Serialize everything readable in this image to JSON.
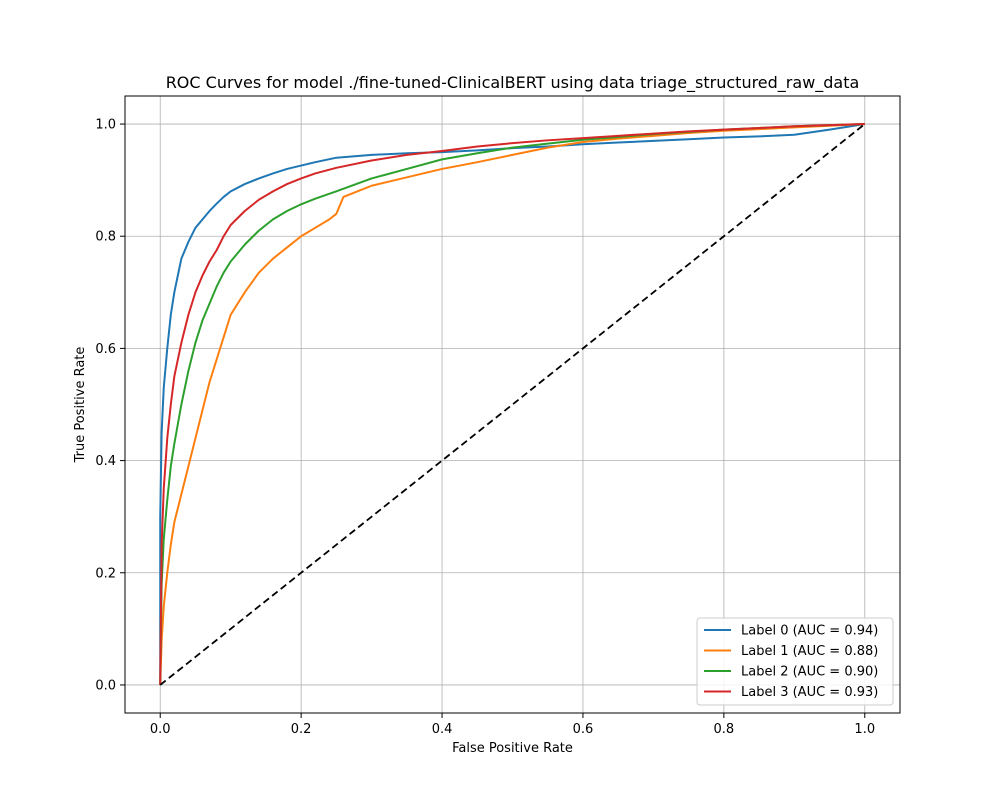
{
  "chart_data": {
    "type": "line",
    "title": "ROC Curves for model ./fine-tuned-ClinicalBERT using data triage_structured_raw_data",
    "xlabel": "False Positive Rate",
    "ylabel": "True Positive Rate",
    "xlim": [
      -0.05,
      1.05
    ],
    "ylim": [
      -0.05,
      1.05
    ],
    "xticks": [
      0.0,
      0.2,
      0.4,
      0.6,
      0.8,
      1.0
    ],
    "yticks": [
      0.0,
      0.2,
      0.4,
      0.6,
      0.8,
      1.0
    ],
    "xtick_labels": [
      "0.0",
      "0.2",
      "0.4",
      "0.6",
      "0.8",
      "1.0"
    ],
    "ytick_labels": [
      "0.0",
      "0.2",
      "0.4",
      "0.6",
      "0.8",
      "1.0"
    ],
    "grid": true,
    "legend": "lower-right",
    "series": [
      {
        "name": "Label 0 (AUC = 0.94)",
        "color": "#1f77b4",
        "x": [
          0.0,
          0.0,
          0.002,
          0.005,
          0.01,
          0.015,
          0.02,
          0.025,
          0.03,
          0.04,
          0.05,
          0.06,
          0.07,
          0.08,
          0.09,
          0.1,
          0.12,
          0.14,
          0.16,
          0.18,
          0.2,
          0.22,
          0.25,
          0.3,
          0.35,
          0.4,
          0.45,
          0.5,
          0.55,
          0.6,
          0.65,
          0.7,
          0.75,
          0.8,
          0.85,
          0.9,
          0.95,
          1.0
        ],
        "y": [
          0.0,
          0.3,
          0.45,
          0.53,
          0.6,
          0.66,
          0.7,
          0.73,
          0.76,
          0.79,
          0.815,
          0.83,
          0.845,
          0.858,
          0.87,
          0.88,
          0.893,
          0.903,
          0.912,
          0.92,
          0.926,
          0.932,
          0.94,
          0.945,
          0.948,
          0.95,
          0.953,
          0.957,
          0.96,
          0.964,
          0.967,
          0.97,
          0.973,
          0.976,
          0.978,
          0.981,
          0.99,
          1.0
        ]
      },
      {
        "name": "Label 1 (AUC = 0.88)",
        "color": "#ff7f0e",
        "x": [
          0.0,
          0.002,
          0.005,
          0.01,
          0.015,
          0.02,
          0.03,
          0.04,
          0.05,
          0.06,
          0.07,
          0.08,
          0.09,
          0.1,
          0.12,
          0.14,
          0.16,
          0.18,
          0.2,
          0.22,
          0.24,
          0.25,
          0.26,
          0.28,
          0.3,
          0.35,
          0.4,
          0.45,
          0.5,
          0.55,
          0.6,
          0.65,
          0.7,
          0.75,
          0.8,
          0.85,
          0.9,
          0.95,
          1.0
        ],
        "y": [
          0.0,
          0.08,
          0.14,
          0.2,
          0.25,
          0.29,
          0.34,
          0.39,
          0.44,
          0.49,
          0.54,
          0.58,
          0.62,
          0.66,
          0.7,
          0.735,
          0.76,
          0.78,
          0.8,
          0.815,
          0.83,
          0.84,
          0.87,
          0.88,
          0.89,
          0.905,
          0.92,
          0.932,
          0.945,
          0.958,
          0.968,
          0.974,
          0.979,
          0.984,
          0.988,
          0.991,
          0.994,
          0.997,
          1.0
        ]
      },
      {
        "name": "Label 2 (AUC = 0.90)",
        "color": "#2ca02c",
        "x": [
          0.0,
          0.002,
          0.005,
          0.01,
          0.015,
          0.02,
          0.03,
          0.04,
          0.05,
          0.06,
          0.07,
          0.08,
          0.09,
          0.1,
          0.12,
          0.14,
          0.16,
          0.18,
          0.2,
          0.22,
          0.25,
          0.3,
          0.35,
          0.4,
          0.45,
          0.5,
          0.55,
          0.6,
          0.65,
          0.7,
          0.75,
          0.8,
          0.85,
          0.9,
          0.95,
          1.0
        ],
        "y": [
          0.0,
          0.18,
          0.26,
          0.33,
          0.39,
          0.43,
          0.5,
          0.56,
          0.61,
          0.65,
          0.68,
          0.71,
          0.735,
          0.755,
          0.785,
          0.81,
          0.83,
          0.845,
          0.857,
          0.867,
          0.88,
          0.903,
          0.92,
          0.937,
          0.948,
          0.958,
          0.965,
          0.972,
          0.977,
          0.982,
          0.986,
          0.99,
          0.993,
          0.996,
          0.998,
          1.0
        ]
      },
      {
        "name": "Label 3 (AUC = 0.93)",
        "color": "#d62728",
        "x": [
          0.0,
          0.002,
          0.005,
          0.01,
          0.015,
          0.02,
          0.03,
          0.04,
          0.05,
          0.06,
          0.07,
          0.08,
          0.09,
          0.1,
          0.12,
          0.14,
          0.16,
          0.18,
          0.2,
          0.22,
          0.25,
          0.3,
          0.35,
          0.4,
          0.45,
          0.5,
          0.55,
          0.6,
          0.65,
          0.7,
          0.75,
          0.8,
          0.85,
          0.9,
          0.95,
          1.0
        ],
        "y": [
          0.0,
          0.25,
          0.35,
          0.44,
          0.5,
          0.55,
          0.61,
          0.66,
          0.7,
          0.73,
          0.755,
          0.775,
          0.8,
          0.82,
          0.845,
          0.865,
          0.88,
          0.893,
          0.903,
          0.912,
          0.922,
          0.935,
          0.945,
          0.952,
          0.96,
          0.966,
          0.971,
          0.975,
          0.979,
          0.983,
          0.987,
          0.99,
          0.993,
          0.996,
          0.998,
          1.0
        ]
      }
    ],
    "reference_line": {
      "x": [
        0.0,
        1.0
      ],
      "y": [
        0.0,
        1.0
      ],
      "color": "#000000",
      "style": "dashed"
    }
  }
}
